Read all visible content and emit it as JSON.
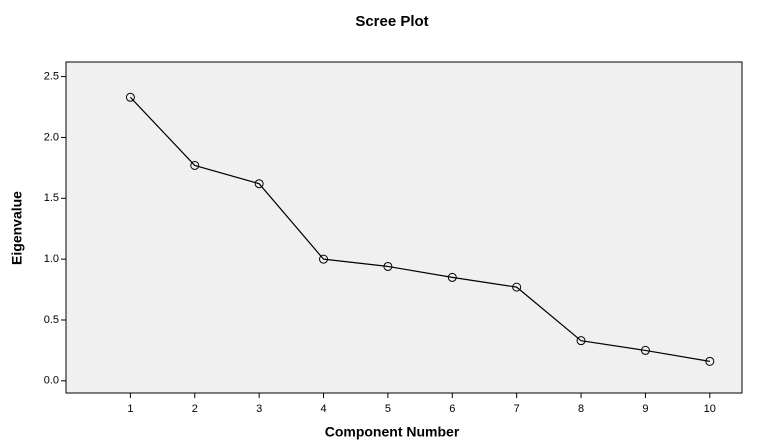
{
  "chart_data": {
    "type": "line",
    "title": "Scree Plot",
    "x_label": "Component Number",
    "y_label": "Eigenvalue",
    "x": [
      1,
      2,
      3,
      4,
      5,
      6,
      7,
      8,
      9,
      10
    ],
    "values": [
      2.33,
      1.77,
      1.62,
      1.0,
      0.94,
      0.85,
      0.77,
      0.33,
      0.25,
      0.16
    ],
    "color": "#000000",
    "xlim": [
      0,
      10.5
    ],
    "xticks": [
      1,
      2,
      3,
      4,
      5,
      6,
      7,
      8,
      9,
      10
    ],
    "ylim": [
      -0.1,
      2.62
    ],
    "yticks": [
      {
        "value": 0,
        "label": "0.0"
      },
      {
        "value": 0.5,
        "label": "0.5"
      },
      {
        "value": 1,
        "label": "1.0"
      },
      {
        "value": 1.5,
        "label": "1.5"
      },
      {
        "value": 2,
        "label": "2.0"
      },
      {
        "value": 2.5,
        "label": "2.5"
      }
    ],
    "grid": false,
    "markers": true
  }
}
